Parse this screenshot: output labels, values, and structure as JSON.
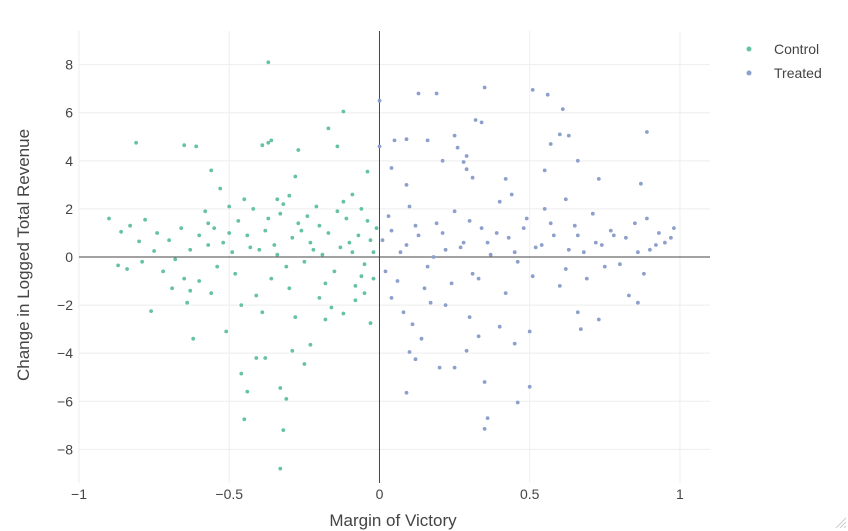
{
  "chart_data": {
    "type": "scatter",
    "title": "",
    "xlabel": "Margin of Victory",
    "ylabel": "Change in Logged Total Revenue",
    "xlim": [
      -1.0,
      1.1
    ],
    "ylim": [
      -9.4,
      9.4
    ],
    "x_ticks": [
      -1,
      -0.5,
      0,
      0.5,
      1
    ],
    "x_tick_labels": [
      "−1",
      "−0.5",
      "0",
      "0.5",
      "1"
    ],
    "y_ticks": [
      -8,
      -6,
      -4,
      -2,
      0,
      2,
      4,
      6,
      8
    ],
    "y_tick_labels": [
      "−8",
      "−6",
      "−4",
      "−2",
      "0",
      "2",
      "4",
      "6",
      "8"
    ],
    "grid": true,
    "zero_lines": true,
    "legend_position": "top-right",
    "series": [
      {
        "name": "Control",
        "color": "#66c2a5",
        "points": [
          [
            -0.37,
            8.1
          ],
          [
            -0.12,
            6.05
          ],
          [
            -0.17,
            5.35
          ],
          [
            -0.81,
            4.75
          ],
          [
            -0.65,
            4.65
          ],
          [
            -0.61,
            4.6
          ],
          [
            -0.37,
            4.75
          ],
          [
            -0.36,
            4.85
          ],
          [
            -0.39,
            4.65
          ],
          [
            -0.14,
            4.6
          ],
          [
            -0.27,
            4.45
          ],
          [
            -0.56,
            3.6
          ],
          [
            -0.28,
            3.35
          ],
          [
            -0.04,
            3.55
          ],
          [
            -0.53,
            2.85
          ],
          [
            -0.34,
            2.4
          ],
          [
            -0.3,
            2.55
          ],
          [
            -0.9,
            1.6
          ],
          [
            -0.83,
            1.3
          ],
          [
            -0.78,
            1.55
          ],
          [
            -0.86,
            1.05
          ],
          [
            -0.8,
            0.65
          ],
          [
            -0.75,
            0.25
          ],
          [
            -0.87,
            -0.35
          ],
          [
            -0.84,
            -0.5
          ],
          [
            -0.79,
            -0.2
          ],
          [
            -0.76,
            -2.25
          ],
          [
            -0.63,
            -1.4
          ],
          [
            -0.6,
            -1.0
          ],
          [
            -0.64,
            -1.9
          ],
          [
            -0.62,
            -3.4
          ],
          [
            -0.51,
            -3.1
          ],
          [
            -0.46,
            -4.85
          ],
          [
            -0.44,
            -5.6
          ],
          [
            -0.41,
            -4.2
          ],
          [
            -0.38,
            -4.2
          ],
          [
            -0.45,
            -6.75
          ],
          [
            -0.33,
            -5.45
          ],
          [
            -0.31,
            -5.9
          ],
          [
            -0.32,
            -7.2
          ],
          [
            -0.33,
            -8.8
          ],
          [
            -0.25,
            -4.45
          ],
          [
            -0.29,
            -3.9
          ],
          [
            -0.23,
            -3.65
          ],
          [
            -0.18,
            -2.6
          ],
          [
            -0.12,
            -2.35
          ],
          [
            -0.08,
            -1.8
          ],
          [
            -0.03,
            -2.75
          ],
          [
            -0.05,
            -1.5
          ],
          [
            -0.02,
            -0.9
          ],
          [
            -0.58,
            1.9
          ],
          [
            -0.55,
            1.2
          ],
          [
            -0.52,
            0.6
          ],
          [
            -0.49,
            0.2
          ],
          [
            -0.47,
            1.5
          ],
          [
            -0.44,
            0.9
          ],
          [
            -0.42,
            2.0
          ],
          [
            -0.4,
            0.3
          ],
          [
            -0.38,
            1.1
          ],
          [
            -0.35,
            0.5
          ],
          [
            -0.33,
            1.8
          ],
          [
            -0.31,
            -0.4
          ],
          [
            -0.29,
            0.8
          ],
          [
            -0.27,
            1.4
          ],
          [
            -0.25,
            -0.2
          ],
          [
            -0.23,
            0.6
          ],
          [
            -0.21,
            2.1
          ],
          [
            -0.19,
            0.1
          ],
          [
            -0.17,
            1.0
          ],
          [
            -0.15,
            -0.6
          ],
          [
            -0.13,
            0.4
          ],
          [
            -0.11,
            1.6
          ],
          [
            -0.09,
            0.2
          ],
          [
            -0.07,
            0.9
          ],
          [
            -0.05,
            -0.3
          ],
          [
            -0.03,
            0.7
          ],
          [
            -0.01,
            1.2
          ],
          [
            -0.02,
            0.2
          ],
          [
            -0.04,
            1.5
          ],
          [
            -0.06,
            -0.8
          ],
          [
            -0.1,
            0.6
          ],
          [
            -0.14,
            1.9
          ],
          [
            -0.18,
            -1.1
          ],
          [
            -0.22,
            0.3
          ],
          [
            -0.26,
            1.1
          ],
          [
            -0.3,
            -1.3
          ],
          [
            -0.34,
            0.1
          ],
          [
            -0.36,
            -0.9
          ],
          [
            -0.41,
            -1.6
          ],
          [
            -0.43,
            0.4
          ],
          [
            -0.48,
            -0.7
          ],
          [
            -0.5,
            1.0
          ],
          [
            -0.54,
            -0.4
          ],
          [
            -0.57,
            0.5
          ],
          [
            -0.6,
            0.9
          ],
          [
            -0.63,
            0.3
          ],
          [
            -0.66,
            1.2
          ],
          [
            -0.68,
            -0.1
          ],
          [
            -0.7,
            0.7
          ],
          [
            -0.72,
            -0.6
          ],
          [
            -0.74,
            1.0
          ],
          [
            -0.65,
            -0.9
          ],
          [
            -0.69,
            -1.3
          ],
          [
            -0.56,
            -1.5
          ],
          [
            -0.46,
            -2.0
          ],
          [
            -0.39,
            -2.3
          ],
          [
            -0.28,
            -2.5
          ],
          [
            -0.2,
            -1.7
          ],
          [
            -0.16,
            -2.1
          ],
          [
            -0.08,
            -1.2
          ],
          [
            -0.24,
            1.7
          ],
          [
            -0.2,
            1.3
          ],
          [
            -0.12,
            2.3
          ],
          [
            -0.09,
            2.6
          ],
          [
            -0.06,
            2.0
          ],
          [
            -0.32,
            2.2
          ],
          [
            -0.37,
            1.6
          ],
          [
            -0.45,
            2.4
          ],
          [
            -0.5,
            2.1
          ],
          [
            -0.57,
            1.4
          ]
        ]
      },
      {
        "name": "Treated",
        "color": "#8da0cb",
        "points": [
          [
            0.0,
            6.5
          ],
          [
            0.35,
            7.05
          ],
          [
            0.51,
            6.95
          ],
          [
            0.13,
            6.8
          ],
          [
            0.19,
            6.8
          ],
          [
            0.56,
            6.75
          ],
          [
            0.61,
            6.15
          ],
          [
            0.32,
            5.7
          ],
          [
            0.34,
            5.6
          ],
          [
            0.6,
            5.1
          ],
          [
            0.63,
            5.05
          ],
          [
            0.89,
            5.2
          ],
          [
            0.25,
            5.05
          ],
          [
            0.0,
            4.6
          ],
          [
            0.05,
            4.85
          ],
          [
            0.09,
            4.9
          ],
          [
            0.16,
            4.85
          ],
          [
            0.26,
            4.55
          ],
          [
            0.57,
            4.7
          ],
          [
            0.29,
            4.2
          ],
          [
            0.21,
            4.0
          ],
          [
            0.28,
            3.95
          ],
          [
            0.66,
            4.0
          ],
          [
            0.04,
            3.7
          ],
          [
            0.29,
            3.65
          ],
          [
            0.55,
            3.6
          ],
          [
            0.42,
            3.25
          ],
          [
            0.73,
            3.25
          ],
          [
            0.87,
            3.05
          ],
          [
            0.31,
            3.3
          ],
          [
            0.09,
            3.0
          ],
          [
            0.98,
            1.2
          ],
          [
            0.95,
            0.6
          ],
          [
            0.93,
            1.0
          ],
          [
            0.9,
            0.3
          ],
          [
            0.85,
            1.4
          ],
          [
            0.82,
            0.8
          ],
          [
            0.8,
            -0.3
          ],
          [
            0.77,
            1.1
          ],
          [
            0.74,
            0.5
          ],
          [
            0.71,
            1.8
          ],
          [
            0.68,
            0.2
          ],
          [
            0.65,
            1.3
          ],
          [
            0.62,
            -0.5
          ],
          [
            0.58,
            0.9
          ],
          [
            0.55,
            2.0
          ],
          [
            0.52,
            0.4
          ],
          [
            0.49,
            1.6
          ],
          [
            0.46,
            -0.2
          ],
          [
            0.43,
            0.8
          ],
          [
            0.4,
            2.3
          ],
          [
            0.37,
            0.1
          ],
          [
            0.34,
            1.2
          ],
          [
            0.31,
            -0.7
          ],
          [
            0.28,
            0.6
          ],
          [
            0.25,
            1.9
          ],
          [
            0.22,
            0.3
          ],
          [
            0.19,
            1.4
          ],
          [
            0.16,
            -0.4
          ],
          [
            0.13,
            0.9
          ],
          [
            0.1,
            2.1
          ],
          [
            0.07,
            0.2
          ],
          [
            0.04,
            1.1
          ],
          [
            0.02,
            -0.6
          ],
          [
            0.01,
            0.7
          ],
          [
            0.03,
            1.7
          ],
          [
            0.06,
            -1.0
          ],
          [
            0.09,
            0.5
          ],
          [
            0.12,
            1.3
          ],
          [
            0.15,
            -1.3
          ],
          [
            0.18,
            0.0
          ],
          [
            0.21,
            1.0
          ],
          [
            0.24,
            -1.1
          ],
          [
            0.27,
            0.4
          ],
          [
            0.3,
            1.5
          ],
          [
            0.33,
            -0.9
          ],
          [
            0.36,
            0.6
          ],
          [
            0.39,
            1.0
          ],
          [
            0.42,
            -1.5
          ],
          [
            0.45,
            0.2
          ],
          [
            0.48,
            1.2
          ],
          [
            0.51,
            -0.8
          ],
          [
            0.54,
            0.5
          ],
          [
            0.57,
            1.4
          ],
          [
            0.6,
            -1.2
          ],
          [
            0.63,
            0.3
          ],
          [
            0.66,
            0.9
          ],
          [
            0.69,
            -0.9
          ],
          [
            0.72,
            0.6
          ],
          [
            0.75,
            -0.4
          ],
          [
            0.78,
            0.9
          ],
          [
            0.83,
            -1.6
          ],
          [
            0.86,
            0.2
          ],
          [
            0.88,
            -0.7
          ],
          [
            0.92,
            0.5
          ],
          [
            0.04,
            -1.7
          ],
          [
            0.08,
            -2.3
          ],
          [
            0.11,
            -2.8
          ],
          [
            0.14,
            -3.4
          ],
          [
            0.1,
            -3.95
          ],
          [
            0.12,
            -4.25
          ],
          [
            0.2,
            -4.6
          ],
          [
            0.25,
            -4.6
          ],
          [
            0.29,
            -3.9
          ],
          [
            0.33,
            -3.3
          ],
          [
            0.35,
            -5.2
          ],
          [
            0.36,
            -6.7
          ],
          [
            0.35,
            -7.15
          ],
          [
            0.46,
            -6.05
          ],
          [
            0.5,
            -5.4
          ],
          [
            0.09,
            -5.65
          ],
          [
            0.5,
            -3.1
          ],
          [
            0.45,
            -3.6
          ],
          [
            0.4,
            -2.9
          ],
          [
            0.3,
            -2.5
          ],
          [
            0.22,
            -2.0
          ],
          [
            0.17,
            -1.9
          ],
          [
            0.66,
            -2.3
          ],
          [
            0.73,
            -2.6
          ],
          [
            0.67,
            -3.0
          ],
          [
            0.86,
            -1.9
          ],
          [
            0.97,
            0.8
          ],
          [
            0.89,
            1.6
          ],
          [
            0.62,
            2.4
          ],
          [
            0.44,
            2.6
          ]
        ]
      }
    ]
  }
}
